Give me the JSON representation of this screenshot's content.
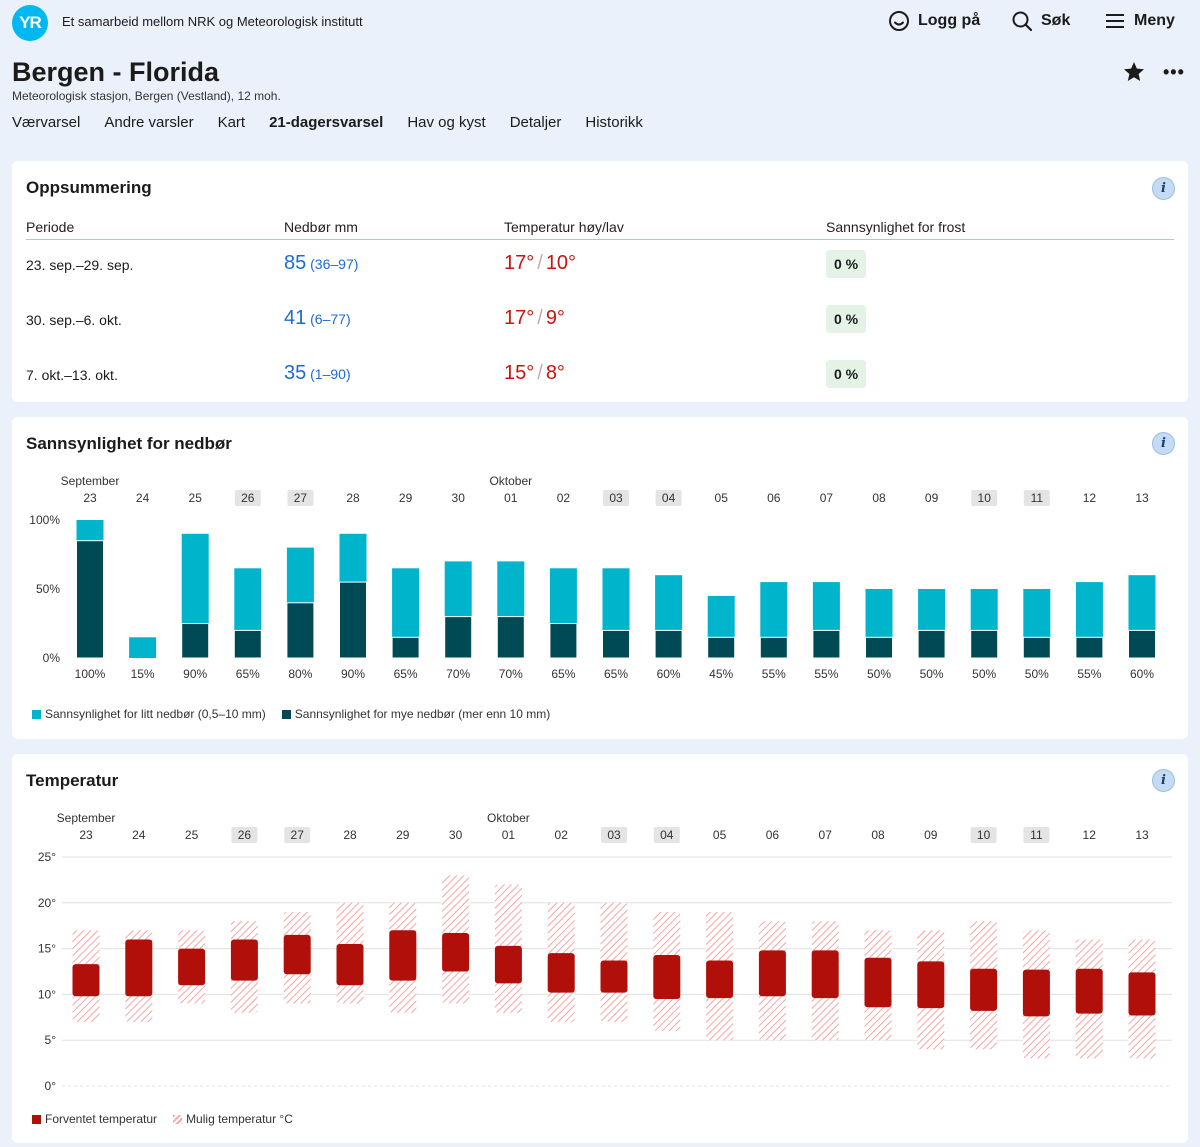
{
  "header": {
    "logo_text": "YR",
    "tagline": "Et samarbeid mellom NRK og Meteorologisk institutt",
    "login_label": "Logg på",
    "search_label": "Søk",
    "menu_label": "Meny"
  },
  "location": {
    "title": "Bergen - Florida",
    "subtitle": "Meteorologisk stasjon, Bergen (Vestland), 12 moh.",
    "more_label": "•••"
  },
  "tabs": [
    {
      "label": "Værvarsel",
      "active": false
    },
    {
      "label": "Andre varsler",
      "active": false
    },
    {
      "label": "Kart",
      "active": false
    },
    {
      "label": "21-dagersvarsel",
      "active": true
    },
    {
      "label": "Hav og kyst",
      "active": false
    },
    {
      "label": "Detaljer",
      "active": false
    },
    {
      "label": "Historikk",
      "active": false
    }
  ],
  "summary": {
    "title": "Oppsummering",
    "info_label": "i",
    "columns": [
      "Periode",
      "Nedbør mm",
      "Temperatur høy/lav",
      "Sannsynlighet for frost"
    ],
    "rows": [
      {
        "period": "23. sep.–29. sep.",
        "precip": "85",
        "precip_range": "(36–97)",
        "high": "17°",
        "low": "10°",
        "frost": "0 %"
      },
      {
        "period": "30. sep.–6. okt.",
        "precip": "41",
        "precip_range": "(6–77)",
        "high": "17°",
        "low": "9°",
        "frost": "0 %"
      },
      {
        "period": "7. okt.–13. okt.",
        "precip": "35",
        "precip_range": "(1–90)",
        "high": "15°",
        "low": "8°",
        "frost": "0 %"
      }
    ]
  },
  "precip_card": {
    "title": "Sannsynlighet for nedbør",
    "info_label": "i"
  },
  "temp_card": {
    "title": "Temperatur",
    "info_label": "i"
  },
  "colors": {
    "light_precip": "#00b4cc",
    "heavy_precip": "#004a55",
    "temp_expected": "#b00f0a",
    "temp_possible": "#f4a6a3",
    "weekend_badge": "#e4e4e4",
    "precip_text": "#1c6bd4",
    "temp_text": "#c9150d"
  },
  "chart_data": [
    {
      "type": "bar",
      "title": "Sannsynlighet for nedbør",
      "month_labels": [
        {
          "index": 0,
          "label": "September"
        },
        {
          "index": 8,
          "label": "Oktober"
        }
      ],
      "categories": [
        "23",
        "24",
        "25",
        "26",
        "27",
        "28",
        "29",
        "30",
        "01",
        "02",
        "03",
        "04",
        "05",
        "06",
        "07",
        "08",
        "09",
        "10",
        "11",
        "12",
        "13"
      ],
      "weekend": [
        false,
        false,
        false,
        true,
        true,
        false,
        false,
        false,
        false,
        false,
        true,
        true,
        false,
        false,
        false,
        false,
        false,
        true,
        true,
        false,
        false
      ],
      "ylim": [
        0,
        100
      ],
      "yticks": [
        "0%",
        "50%",
        "100%"
      ],
      "series": [
        {
          "name": "Sannsynlighet for litt nedbør (0,5–10 mm)",
          "values": [
            100,
            15,
            90,
            65,
            80,
            90,
            65,
            70,
            70,
            65,
            65,
            60,
            45,
            55,
            55,
            50,
            50,
            50,
            50,
            55,
            60
          ]
        },
        {
          "name": "Sannsynlighet for mye nedbør (mer enn 10 mm)",
          "values": [
            85,
            0,
            25,
            20,
            40,
            55,
            15,
            30,
            30,
            25,
            20,
            20,
            15,
            15,
            20,
            15,
            20,
            20,
            15,
            15,
            20
          ]
        }
      ],
      "value_labels": [
        "100%",
        "15%",
        "90%",
        "65%",
        "80%",
        "90%",
        "65%",
        "70%",
        "70%",
        "65%",
        "65%",
        "60%",
        "45%",
        "55%",
        "55%",
        "50%",
        "50%",
        "50%",
        "50%",
        "55%",
        "60%"
      ]
    },
    {
      "type": "bar",
      "title": "Temperatur",
      "month_labels": [
        {
          "index": 0,
          "label": "September"
        },
        {
          "index": 8,
          "label": "Oktober"
        }
      ],
      "categories": [
        "23",
        "24",
        "25",
        "26",
        "27",
        "28",
        "29",
        "30",
        "01",
        "02",
        "03",
        "04",
        "05",
        "06",
        "07",
        "08",
        "09",
        "10",
        "11",
        "12",
        "13"
      ],
      "weekend": [
        false,
        false,
        false,
        true,
        true,
        false,
        false,
        false,
        false,
        false,
        true,
        true,
        false,
        false,
        false,
        false,
        false,
        true,
        true,
        false,
        false
      ],
      "ylim": [
        0,
        25
      ],
      "yticks": [
        "0°",
        "5°",
        "10°",
        "15°",
        "20°",
        "25°"
      ],
      "series": [
        {
          "name": "Forventet temperatur",
          "low": [
            9.8,
            9.8,
            11,
            11.5,
            12.2,
            11,
            11.5,
            12.5,
            11.2,
            10.2,
            10.2,
            9.5,
            9.6,
            9.8,
            9.6,
            8.6,
            8.5,
            8.2,
            7.6,
            7.9,
            7.7
          ],
          "high": [
            13.3,
            16,
            15,
            16,
            16.5,
            15.5,
            17,
            16.7,
            15.3,
            14.5,
            13.7,
            14.3,
            13.7,
            14.8,
            14.8,
            14,
            13.6,
            12.8,
            12.7,
            12.8,
            12.4
          ]
        },
        {
          "name": "Mulig temperatur °C",
          "low": [
            7,
            7,
            9,
            8,
            9,
            9,
            8,
            9,
            8,
            7,
            7,
            6,
            5,
            5,
            5,
            5,
            4,
            4,
            3,
            3,
            3
          ],
          "high": [
            17,
            17,
            17,
            18,
            19,
            20,
            20,
            23,
            22,
            20,
            20,
            19,
            19,
            18,
            18,
            17,
            17,
            18,
            17,
            16,
            16
          ]
        }
      ]
    }
  ]
}
